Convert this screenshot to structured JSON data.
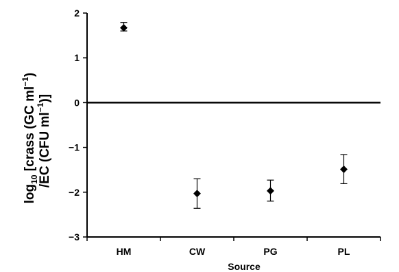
{
  "chart_data": {
    "type": "scatter",
    "title": "",
    "xlabel": "Source",
    "ylabel": {
      "line1": {
        "prefix": "log",
        "sub": "10",
        "text": " [crass (GC ml",
        "sup": "−1",
        "suffix": ")"
      },
      "line2": {
        "prefix": "/EC (CFU ml",
        "sup": "−1",
        "suffix": ")]"
      }
    },
    "categories": [
      "HM",
      "CW",
      "PG",
      "PL"
    ],
    "ylim": [
      -3,
      2
    ],
    "yticks": [
      2,
      1,
      0,
      -1,
      -2,
      -3
    ],
    "ytick_labels": [
      "2",
      "1",
      "0",
      "−1",
      "−2",
      "−3"
    ],
    "grid": false,
    "legend": "none",
    "reference_line_y": 0,
    "series": [
      {
        "values": [
          1.67,
          -2.03,
          -1.97,
          -1.49
        ],
        "error_low": [
          1.6,
          -2.36,
          -2.2,
          -1.81
        ],
        "error_high": [
          1.79,
          -1.7,
          -1.73,
          -1.16
        ],
        "marker": "diamond",
        "color": "#000000"
      }
    ]
  }
}
